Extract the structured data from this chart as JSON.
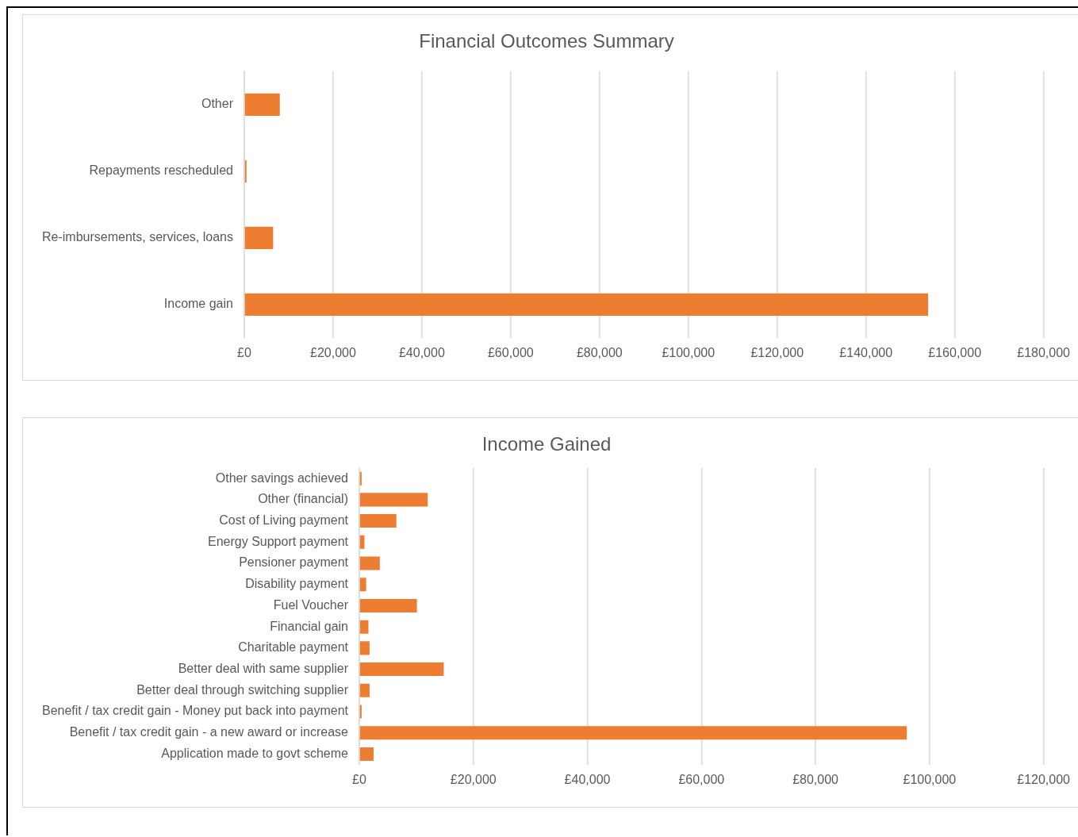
{
  "chart_data": [
    {
      "type": "bar",
      "title": "Financial Outcomes Summary",
      "orientation": "horizontal",
      "categories": [
        "Other",
        "Repayments rescheduled",
        "Re-imbursements, services, loans",
        "Income gain"
      ],
      "values": [
        8000,
        500,
        6500,
        154000
      ],
      "color": "#ed7d31",
      "xlim": [
        0,
        180000
      ],
      "xticks": [
        {
          "value": 0,
          "label": "£0"
        },
        {
          "value": 20000,
          "label": "£20,000"
        },
        {
          "value": 40000,
          "label": "£40,000"
        },
        {
          "value": 60000,
          "label": "£60,000"
        },
        {
          "value": 80000,
          "label": "£80,000"
        },
        {
          "value": 100000,
          "label": "£100,000"
        },
        {
          "value": 120000,
          "label": "£120,000"
        },
        {
          "value": 140000,
          "label": "£140,000"
        },
        {
          "value": 160000,
          "label": "£160,000"
        },
        {
          "value": 180000,
          "label": "£180,000"
        }
      ],
      "grid": "x",
      "legend": false
    },
    {
      "type": "bar",
      "title": "Income Gained",
      "orientation": "horizontal",
      "categories": [
        "Other savings achieved",
        "Other (financial)",
        "Cost of Living payment",
        "Energy Support payment",
        "Pensioner payment",
        "Disability payment",
        "Fuel Voucher",
        "Financial gain",
        "Charitable payment",
        "Better deal with same supplier",
        "Better deal through switching supplier",
        "Benefit / tax credit gain - Money put back into payment",
        "Benefit / tax credit gain - a new award or increase",
        "Application made to govt scheme"
      ],
      "values": [
        400,
        12000,
        6500,
        900,
        3600,
        1200,
        10100,
        1600,
        1800,
        14800,
        1800,
        400,
        96000,
        2500
      ],
      "color": "#ed7d31",
      "xlim": [
        0,
        120000
      ],
      "xticks": [
        {
          "value": 0,
          "label": "£0"
        },
        {
          "value": 20000,
          "label": "£20,000"
        },
        {
          "value": 40000,
          "label": "£40,000"
        },
        {
          "value": 60000,
          "label": "£60,000"
        },
        {
          "value": 80000,
          "label": "£80,000"
        },
        {
          "value": 100000,
          "label": "£100,000"
        },
        {
          "value": 120000,
          "label": "£120,000"
        }
      ],
      "grid": "x",
      "legend": false
    }
  ]
}
